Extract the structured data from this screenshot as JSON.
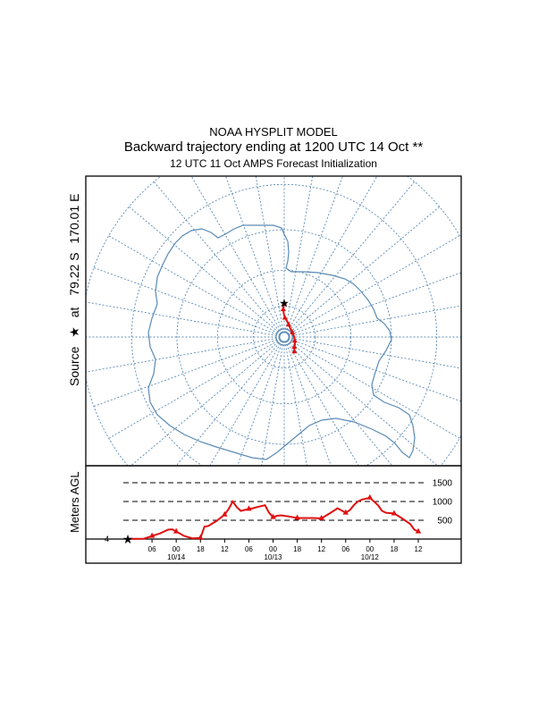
{
  "header": {
    "line1": "NOAA HYSPLIT MODEL",
    "line2": "Backward trajectory ending at 1200 UTC 14 Oct **",
    "line3": "12 UTC 11 Oct    AMPS  Forecast Initialization"
  },
  "map": {
    "source_label": "Source",
    "star_glyph": "★",
    "at_label": "at",
    "lat_label": "79.22 S",
    "lon_label": "170.01 E",
    "grid_color": "#5a8ab5",
    "coast_color": "#5a8ab5",
    "trajectory_color": "#e01010"
  },
  "chart_data": {
    "type": "line",
    "title": "Backward trajectory ending at 1200 UTC 14 Oct **",
    "ylabel": "Meters AGL",
    "xlabel": "",
    "ylim": [
      0,
      1700
    ],
    "y_gridlines": [
      500,
      1000,
      1500
    ],
    "y_gridline_labels": [
      "500",
      "1000",
      "1500"
    ],
    "start_height_label": "4",
    "x_range_hours": [
      0,
      72
    ],
    "x_direction": "backward in time, left to right",
    "x_ticks": [
      {
        "h": 6,
        "label": "06"
      },
      {
        "h": 12,
        "label": "00"
      },
      {
        "h": 18,
        "label": "18"
      },
      {
        "h": 24,
        "label": "12"
      },
      {
        "h": 30,
        "label": "06"
      },
      {
        "h": 36,
        "label": "00"
      },
      {
        "h": 42,
        "label": "18"
      },
      {
        "h": 48,
        "label": "12"
      },
      {
        "h": 54,
        "label": "06"
      },
      {
        "h": 60,
        "label": "00"
      },
      {
        "h": 66,
        "label": "18"
      },
      {
        "h": 72,
        "label": "12"
      }
    ],
    "date_labels": [
      {
        "h": 12,
        "label": "10/14"
      },
      {
        "h": 36,
        "label": "10/13"
      },
      {
        "h": 60,
        "label": "10/12"
      }
    ],
    "series": [
      {
        "name": "trajectory height",
        "hours": [
          0,
          2,
          4,
          6,
          8,
          10,
          11,
          12,
          14,
          16,
          18,
          19,
          20,
          21,
          22,
          24,
          25,
          26,
          27,
          28,
          30,
          31,
          32,
          34,
          35,
          36,
          37,
          38,
          40,
          42,
          44,
          46,
          48,
          50,
          52,
          54,
          55,
          56,
          57,
          58,
          60,
          62,
          63,
          64,
          66,
          68,
          70,
          71,
          72
        ],
        "heights": [
          4,
          5,
          10,
          80,
          150,
          250,
          260,
          200,
          80,
          20,
          30,
          330,
          350,
          420,
          480,
          650,
          800,
          1000,
          850,
          750,
          800,
          820,
          850,
          900,
          700,
          580,
          620,
          630,
          600,
          560,
          560,
          560,
          550,
          680,
          820,
          700,
          770,
          900,
          1000,
          1050,
          1100,
          900,
          750,
          700,
          680,
          550,
          400,
          250,
          200
        ]
      }
    ],
    "markers_every_hours": 6,
    "map_path_lonlat": [
      [
        170.01,
        -79.22
      ],
      [
        171,
        -79.8
      ],
      [
        172,
        -81
      ],
      [
        171,
        -82.5
      ],
      [
        168,
        -83.6
      ],
      [
        160,
        -84.6
      ],
      [
        150,
        -85.6
      ],
      [
        135,
        -86.4
      ],
      [
        110,
        -86.8
      ],
      [
        80,
        -86.6
      ],
      [
        60,
        -86.2
      ],
      [
        45,
        -85.6
      ],
      [
        35,
        -85.2
      ],
      [
        30,
        -84.8
      ],
      [
        25,
        -84.1
      ]
    ]
  }
}
